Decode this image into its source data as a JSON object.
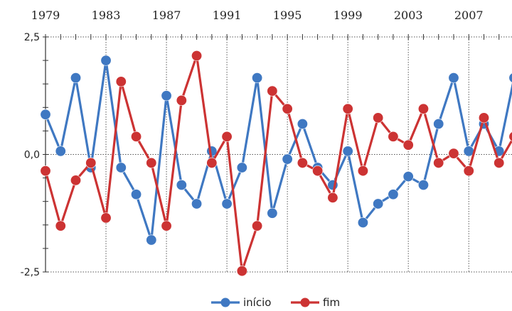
{
  "chart_data": {
    "type": "line",
    "x": [
      1979,
      1980,
      1981,
      1982,
      1983,
      1984,
      1985,
      1986,
      1987,
      1988,
      1989,
      1990,
      1991,
      1992,
      1993,
      1994,
      1995,
      1996,
      1997,
      1998,
      1999,
      2000,
      2001,
      2002,
      2003,
      2004,
      2005,
      2006,
      2007,
      2008,
      2009,
      2010
    ],
    "x_ticks": [
      "1979",
      "1983",
      "1987",
      "1991",
      "1995",
      "1999",
      "2003",
      "2007"
    ],
    "y_ticks": [
      "2,5",
      "0,0",
      "-2,5"
    ],
    "ylim": [
      -2.5,
      2.5
    ],
    "xlim": [
      1979,
      2010
    ],
    "grid": true,
    "legend_position": "bottom",
    "series": [
      {
        "name": "início",
        "color": "#3f78c2",
        "values": [
          0.85,
          0.07,
          1.63,
          -0.28,
          2.0,
          -0.28,
          -0.85,
          -1.82,
          1.25,
          -0.65,
          -1.05,
          0.07,
          -1.05,
          -0.28,
          1.63,
          -1.25,
          -0.1,
          0.65,
          -0.28,
          -0.65,
          0.07,
          -1.45,
          -1.05,
          -0.85,
          -0.47,
          -0.65,
          0.65,
          1.63,
          0.07,
          0.65,
          0.07,
          1.63
        ]
      },
      {
        "name": "fim",
        "color": "#cc3333",
        "values": [
          -0.35,
          -1.52,
          -0.55,
          -0.18,
          -1.35,
          1.55,
          0.38,
          -0.18,
          -1.52,
          1.15,
          2.1,
          -0.18,
          0.38,
          -2.48,
          -1.52,
          1.35,
          0.97,
          -0.18,
          -0.35,
          -0.92,
          0.97,
          -0.35,
          0.78,
          0.38,
          0.2,
          0.97,
          -0.18,
          0.02,
          -0.35,
          0.78,
          -0.18,
          0.38
        ]
      }
    ]
  }
}
